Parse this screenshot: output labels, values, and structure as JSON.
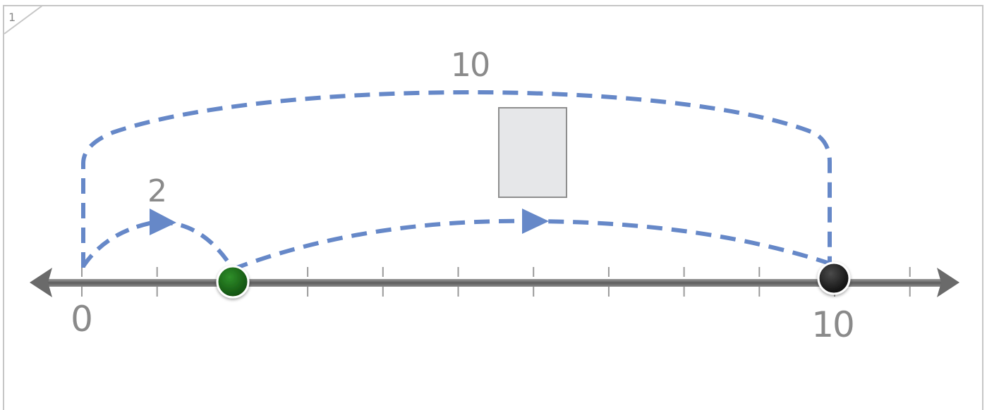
{
  "page": {
    "number": "1"
  },
  "number_line": {
    "start_label": "0",
    "end_label": "10",
    "tick_count": 12
  },
  "jumps": {
    "small_jump_label": "2",
    "big_jump_label": "10"
  },
  "answer_box": {
    "value": ""
  },
  "points": {
    "green_point_value": 2,
    "black_point_value": 10
  },
  "colors": {
    "jump": "#6688c8",
    "axis": "#6e6e6e",
    "tick": "#9a9a9a",
    "label": "#8a8a8a",
    "green_point": "#1c6d1a",
    "black_point": "#1a1a1a",
    "box_fill": "#e6e7e9",
    "box_border": "#8e8e8e"
  }
}
